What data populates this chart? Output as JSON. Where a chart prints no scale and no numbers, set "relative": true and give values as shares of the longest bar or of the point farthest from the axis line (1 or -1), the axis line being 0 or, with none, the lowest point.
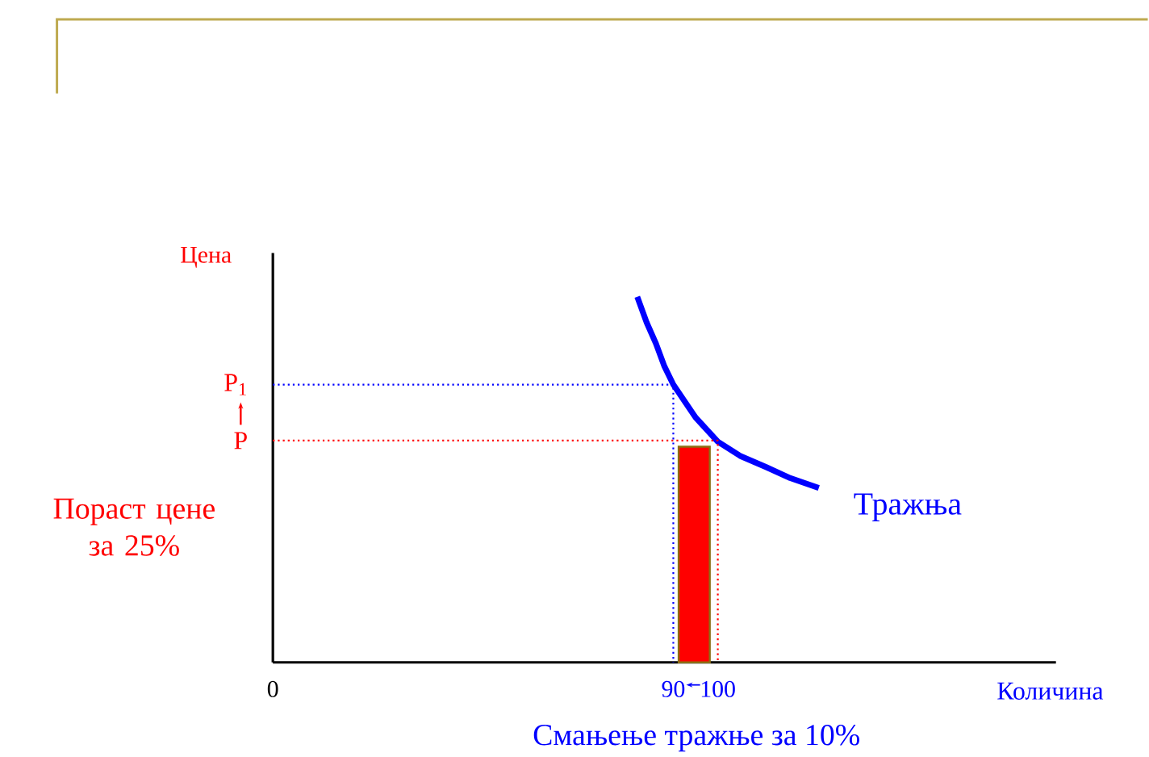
{
  "chart_data": {
    "type": "line",
    "relative": true,
    "xlabel": "Количина",
    "ylabel": "Цена",
    "xlim": [
      0,
      176
    ],
    "xticks": [
      0,
      90,
      100
    ],
    "tick_labels": "x",
    "marker": "none",
    "grid": false,
    "series": [
      {
        "name": "Тражња",
        "color": "#0000ff",
        "line_style": "solid",
        "x": [
          81.9,
          84,
          86.1,
          88,
          90,
          95,
          100,
          105,
          110.9,
          116.3,
          122.7
        ],
        "values": [
          1,
          0.93,
          0.872,
          0.81,
          0.76,
          0.67,
          0.604,
          0.565,
          0.534,
          0.504,
          0.477
        ]
      },
      {
        "type": "bar",
        "color": "#ff0000",
        "x": [
          94.7
        ],
        "values": [
          0.59
        ]
      },
      {
        "color": "#0000ff",
        "line_style": "dotted",
        "x": [
          0,
          90,
          90
        ],
        "values": [
          0.76,
          0.76,
          0
        ]
      },
      {
        "color": "#ff0000",
        "line_style": "dotted",
        "x": [
          0,
          100,
          100
        ],
        "values": [
          0.607,
          0.607,
          0
        ]
      }
    ],
    "annotations": [
      {
        "text": "P$_{1}$",
        "x": 0,
        "y": 0.76
      },
      {
        "text": "P",
        "x": 0,
        "y": 0.607
      },
      "Пораст цене за 25%",
      "Смањење тражње за 10%"
    ]
  }
}
